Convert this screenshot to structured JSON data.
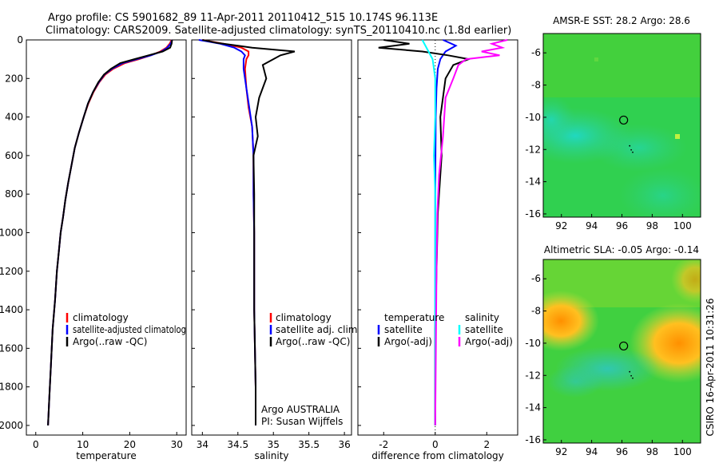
{
  "header": {
    "line1": "Argo profile: CS 5901682_89 11-Apr-2011 20110412_515 10.174S 96.113E",
    "line2": "Climatology: CARS2009. Satellite-adjusted climatology: synTS_20110410.nc (1.8d earlier)"
  },
  "side_label": "CSIRO 16-Apr-2011 10:31:26",
  "colors": {
    "climatology": "#ff0000",
    "satellite": "#0000ff",
    "argo": "#000000",
    "salinity_satellite": "#00ffff",
    "salinity_argo": "#ff00ff"
  },
  "chart_data": [
    {
      "type": "line",
      "id": "temperature",
      "xlabel": "temperature",
      "ylabel": "",
      "xlim": [
        -2,
        32
      ],
      "ylim": [
        2050,
        0
      ],
      "xticks": [
        0,
        10,
        20,
        30
      ],
      "yticks": [
        0,
        200,
        400,
        600,
        800,
        1000,
        1200,
        1400,
        1600,
        1800,
        2000
      ],
      "legend": [
        "climatology",
        "satellite-adjusted climatolog",
        "Argo(..raw -QC)"
      ],
      "series": [
        {
          "name": "climatology",
          "color": "#ff0000",
          "x": [
            28.9,
            28.5,
            27.8,
            26.5,
            24.5,
            22.0,
            19.0,
            16.5,
            14.8,
            13.5,
            12.3,
            11.2,
            10.2,
            9.2,
            8.3,
            7.6,
            6.9,
            6.3,
            5.8,
            5.3,
            4.9,
            4.5,
            4.1,
            3.6,
            3.2,
            2.9,
            2.6
          ],
          "y": [
            0,
            20,
            40,
            60,
            80,
            100,
            120,
            150,
            180,
            220,
            270,
            330,
            400,
            480,
            560,
            650,
            740,
            830,
            920,
            1000,
            1100,
            1200,
            1350,
            1500,
            1700,
            1850,
            2000
          ]
        },
        {
          "name": "satellite-adjusted climatolog",
          "color": "#0000ff",
          "x": [
            29.0,
            28.7,
            28.0,
            26.8,
            24.5,
            21.5,
            18.5,
            16.2,
            14.6,
            13.4,
            12.2,
            11.1,
            10.2,
            9.2,
            8.3,
            7.6,
            6.9,
            6.3,
            5.8,
            5.3,
            4.9,
            4.5,
            4.1,
            3.6,
            3.2,
            2.9,
            2.6
          ],
          "y": [
            0,
            20,
            40,
            60,
            80,
            100,
            120,
            150,
            180,
            220,
            270,
            330,
            400,
            480,
            560,
            650,
            740,
            830,
            920,
            1000,
            1100,
            1200,
            1350,
            1500,
            1700,
            1850,
            2000
          ]
        },
        {
          "name": "Argo(..raw -QC)",
          "color": "#000000",
          "x": [
            29.0,
            28.9,
            28.6,
            27.0,
            24.0,
            21.0,
            18.0,
            16.0,
            14.5,
            13.3,
            12.2,
            11.1,
            10.2,
            9.2,
            8.3,
            7.6,
            6.9,
            6.3,
            5.8,
            5.3,
            4.9,
            4.5,
            4.1,
            3.6,
            3.2,
            2.9,
            2.6
          ],
          "y": [
            0,
            20,
            40,
            60,
            80,
            100,
            120,
            150,
            180,
            220,
            270,
            330,
            400,
            480,
            560,
            650,
            740,
            830,
            920,
            1000,
            1100,
            1200,
            1350,
            1500,
            1700,
            1850,
            2000
          ]
        }
      ]
    },
    {
      "type": "line",
      "id": "salinity",
      "xlabel": "salinity",
      "ylabel": "",
      "xlim": [
        33.85,
        36.1
      ],
      "ylim": [
        2050,
        0
      ],
      "xticks": [
        34,
        34.5,
        35,
        35.5,
        36
      ],
      "yticks": [],
      "legend": [
        "climatology",
        "satellite adj. clim.",
        "Argo(..raw -QC)"
      ],
      "annotation": [
        "Argo AUSTRALIA",
        "PI: Susan Wijffels"
      ],
      "series": [
        {
          "name": "climatology",
          "color": "#ff0000",
          "x": [
            34.0,
            34.3,
            34.55,
            34.65,
            34.65,
            34.62,
            34.6,
            34.62,
            34.65,
            34.7,
            34.72,
            34.72,
            34.73,
            34.73,
            34.73,
            34.74,
            34.75,
            34.75
          ],
          "y": [
            0,
            20,
            40,
            60,
            80,
            100,
            150,
            250,
            350,
            450,
            600,
            800,
            1000,
            1200,
            1400,
            1600,
            1800,
            2000
          ]
        },
        {
          "name": "satellite adj. clim.",
          "color": "#0000ff",
          "x": [
            33.95,
            34.25,
            34.45,
            34.55,
            34.6,
            34.58,
            34.58,
            34.62,
            34.66,
            34.7,
            34.72,
            34.72,
            34.73,
            34.73,
            34.73,
            34.74,
            34.75,
            34.75
          ],
          "y": [
            0,
            20,
            40,
            60,
            80,
            100,
            150,
            250,
            350,
            450,
            600,
            800,
            1000,
            1200,
            1400,
            1600,
            1800,
            2000
          ]
        },
        {
          "name": "Argo(..raw -QC)",
          "color": "#000000",
          "x": [
            34.0,
            34.2,
            34.5,
            34.7,
            35.0,
            35.3,
            35.1,
            35.0,
            34.85,
            34.9,
            34.8,
            34.75,
            34.78,
            34.72,
            34.73,
            34.73,
            34.73,
            34.73,
            34.74,
            34.75,
            34.75
          ],
          "y": [
            0,
            15,
            30,
            40,
            50,
            60,
            80,
            100,
            130,
            200,
            300,
            400,
            500,
            600,
            800,
            1000,
            1200,
            1400,
            1600,
            1800,
            2000
          ]
        }
      ]
    },
    {
      "type": "line",
      "id": "difference",
      "xlabel": "difference from climatology",
      "ylabel": "",
      "xlim": [
        -3,
        3.2
      ],
      "ylim": [
        2050,
        0
      ],
      "xticks": [
        -2,
        0,
        2
      ],
      "yticks": [],
      "legend": [
        "temperature",
        "satellite",
        "Argo(-adj)",
        "salinity",
        "satellite",
        "Argo(-adj)"
      ],
      "series": [
        {
          "name": "temperature satellite",
          "color": "#0000ff",
          "x": [
            0.3,
            0.8,
            0.4,
            0.2,
            0.1,
            0.05,
            0.02,
            0.01,
            0.0,
            0.0,
            0.0,
            0.0,
            0.0,
            0.0
          ],
          "y": [
            0,
            30,
            60,
            100,
            150,
            250,
            400,
            600,
            800,
            1000,
            1200,
            1500,
            1800,
            2000
          ]
        },
        {
          "name": "temperature Argo(-adj)",
          "color": "#000000",
          "x": [
            -2.0,
            -1.0,
            -2.2,
            -0.5,
            0.5,
            1.3,
            0.7,
            0.4,
            0.2,
            0.25,
            0.1,
            0.05,
            0.0,
            0.0,
            0.0
          ],
          "y": [
            0,
            20,
            40,
            60,
            80,
            100,
            130,
            200,
            400,
            600,
            900,
            1200,
            1500,
            1800,
            2000
          ]
        },
        {
          "name": "salinity satellite",
          "color": "#00ffff",
          "x": [
            -0.5,
            -0.3,
            -0.1,
            0.0,
            0.0,
            -0.05,
            0.0,
            0.0,
            0.0,
            0.0,
            0.0,
            0.0
          ],
          "y": [
            0,
            50,
            100,
            200,
            400,
            600,
            800,
            1000,
            1300,
            1600,
            1800,
            2000
          ]
        },
        {
          "name": "salinity Argo(-adj)",
          "color": "#ff00ff",
          "x": [
            2.8,
            2.2,
            2.6,
            1.8,
            2.5,
            1.2,
            0.9,
            0.7,
            0.4,
            0.3,
            0.15,
            0.08,
            0.05,
            0.0
          ],
          "y": [
            0,
            20,
            40,
            60,
            80,
            100,
            130,
            200,
            300,
            500,
            700,
            900,
            1200,
            2000
          ]
        }
      ]
    },
    {
      "type": "heatmap",
      "id": "sst-map",
      "title": "AMSR-E SST: 28.2 Argo: 28.6",
      "xlim": [
        90.8,
        101.2
      ],
      "ylim": [
        -16.2,
        -4.8
      ],
      "xticks": [
        92,
        94,
        96,
        98,
        100
      ],
      "yticks": [
        -6,
        -8,
        -10,
        -12,
        -14,
        -16
      ],
      "marker": {
        "lon": 96.113,
        "lat": -10.174
      }
    },
    {
      "type": "heatmap",
      "id": "sla-map",
      "title": "Altimetric SLA: -0.05 Argo: -0.14",
      "xlim": [
        90.8,
        101.2
      ],
      "ylim": [
        -16.2,
        -4.8
      ],
      "xticks": [
        92,
        94,
        96,
        98,
        100
      ],
      "yticks": [
        -6,
        -8,
        -10,
        -12,
        -14,
        -16
      ],
      "marker": {
        "lon": 96.113,
        "lat": -10.174
      }
    }
  ]
}
